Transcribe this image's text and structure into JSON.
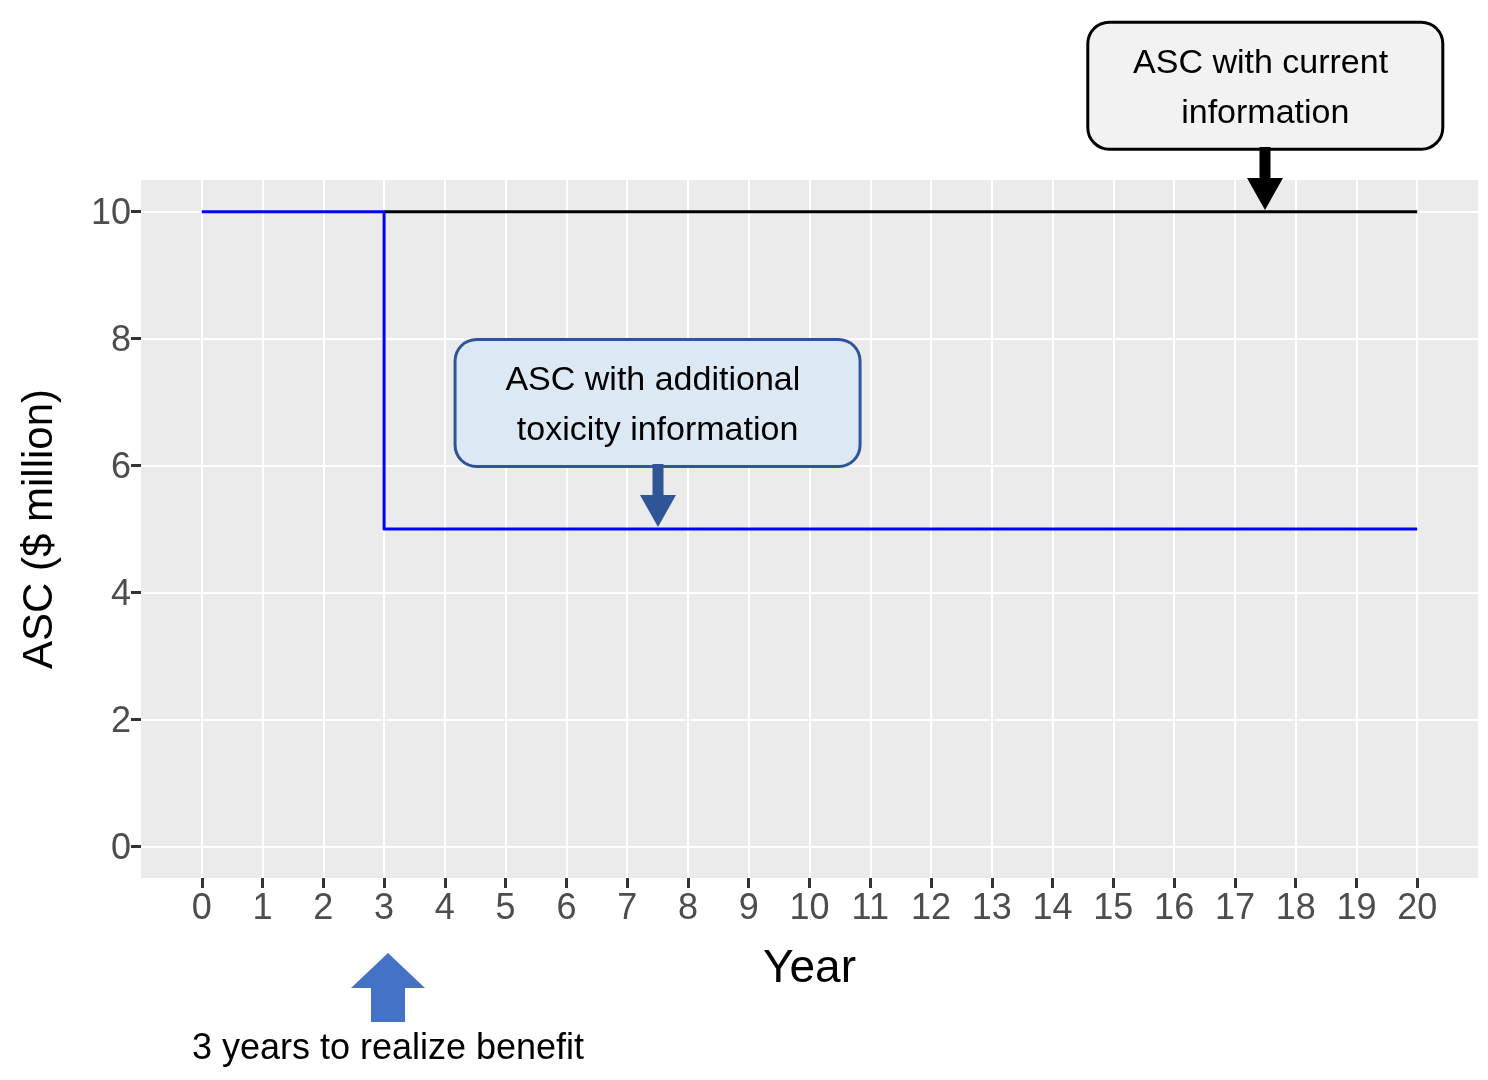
{
  "chart_data": {
    "type": "step",
    "xlabel": "Year",
    "ylabel": "ASC ($ million)",
    "xlim": [
      -1,
      21
    ],
    "xticks": [
      0,
      1,
      2,
      3,
      4,
      5,
      6,
      7,
      8,
      9,
      10,
      11,
      12,
      13,
      14,
      15,
      16,
      17,
      18,
      19,
      20
    ],
    "ylim": [
      -0.5,
      10.5
    ],
    "yticks": [
      0,
      2,
      4,
      6,
      8,
      10
    ],
    "grid": true,
    "series": [
      {
        "color": "#000000",
        "x": [
          3,
          20
        ],
        "values": [
          10,
          10
        ]
      },
      {
        "color": "#0000ff",
        "x": [
          0,
          3,
          20
        ],
        "values": [
          10,
          5,
          5
        ]
      }
    ],
    "annotations": [
      {
        "text": "ASC with current information",
        "x": 17.5,
        "y": 10
      },
      {
        "text": "ASC with additional toxicity information",
        "x": 7.5,
        "y": 5
      },
      "3 years to realize benefit"
    ]
  }
}
